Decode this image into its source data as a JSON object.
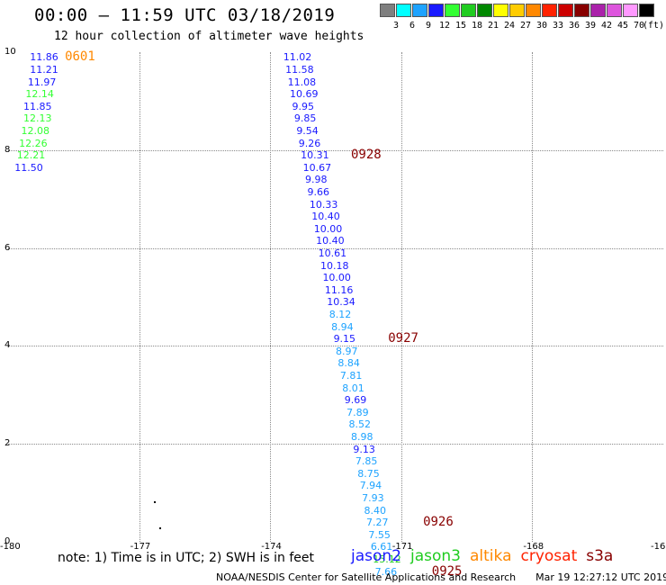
{
  "title": "00:00 – 11:59 UTC 03/18/2019",
  "subtitle": "12 hour collection of altimeter wave heights",
  "legend": {
    "unit": "(ft)",
    "colors": [
      "#7f7f7f",
      "#00ffff",
      "#1ea3ff",
      "#1a1aff",
      "#33ff33",
      "#20cc20",
      "#008800",
      "#ffff00",
      "#ffcc00",
      "#ff8800",
      "#ff2200",
      "#cc0000",
      "#880000",
      "#aa22aa",
      "#dd55dd",
      "#ff99ff",
      "#000000"
    ],
    "labels": [
      "3",
      "6",
      "9",
      "12",
      "15",
      "18",
      "21",
      "24",
      "27",
      "30",
      "33",
      "36",
      "39",
      "42",
      "45",
      "70"
    ]
  },
  "axes": {
    "x_ticks": [
      "-180",
      "-177",
      "-174",
      "-171",
      "-168",
      "-16"
    ],
    "y_ticks": [
      "10",
      "8",
      "6",
      "4",
      "2",
      "0"
    ]
  },
  "observations": [
    {
      "lon": -179.5,
      "lat": 9.9,
      "value": "11.86",
      "color": "#1a1aff"
    },
    {
      "lon": -179.5,
      "lat": 9.65,
      "value": "11.21",
      "color": "#1a1aff"
    },
    {
      "lon": -179.55,
      "lat": 9.4,
      "value": "11.97",
      "color": "#1a1aff"
    },
    {
      "lon": -179.6,
      "lat": 9.15,
      "value": "12.14",
      "color": "#33ff33"
    },
    {
      "lon": -179.65,
      "lat": 8.9,
      "value": "11.85",
      "color": "#1a1aff"
    },
    {
      "lon": -179.65,
      "lat": 8.65,
      "value": "12.13",
      "color": "#33ff33"
    },
    {
      "lon": -179.7,
      "lat": 8.4,
      "value": "12.08",
      "color": "#33ff33"
    },
    {
      "lon": -179.75,
      "lat": 8.15,
      "value": "12.26",
      "color": "#33ff33"
    },
    {
      "lon": -179.8,
      "lat": 7.9,
      "value": "12.21",
      "color": "#33ff33"
    },
    {
      "lon": -179.85,
      "lat": 7.65,
      "value": "11.50",
      "color": "#1a1aff"
    },
    {
      "lon": -173.7,
      "lat": 9.9,
      "value": "11.02",
      "color": "#1a1aff"
    },
    {
      "lon": -173.65,
      "lat": 9.65,
      "value": "11.58",
      "color": "#1a1aff"
    },
    {
      "lon": -173.6,
      "lat": 9.4,
      "value": "11.08",
      "color": "#1a1aff"
    },
    {
      "lon": -173.55,
      "lat": 9.15,
      "value": "10.69",
      "color": "#1a1aff"
    },
    {
      "lon": -173.5,
      "lat": 8.9,
      "value": "9.95",
      "color": "#1a1aff"
    },
    {
      "lon": -173.45,
      "lat": 8.65,
      "value": "9.85",
      "color": "#1a1aff"
    },
    {
      "lon": -173.4,
      "lat": 8.4,
      "value": "9.54",
      "color": "#1a1aff"
    },
    {
      "lon": -173.35,
      "lat": 8.15,
      "value": "9.26",
      "color": "#1a1aff"
    },
    {
      "lon": -173.3,
      "lat": 7.9,
      "value": "10.31",
      "color": "#1a1aff"
    },
    {
      "lon": -173.25,
      "lat": 7.65,
      "value": "10.67",
      "color": "#1a1aff"
    },
    {
      "lon": -173.2,
      "lat": 7.4,
      "value": "9.98",
      "color": "#1a1aff"
    },
    {
      "lon": -173.15,
      "lat": 7.15,
      "value": "9.66",
      "color": "#1a1aff"
    },
    {
      "lon": -173.1,
      "lat": 6.9,
      "value": "10.33",
      "color": "#1a1aff"
    },
    {
      "lon": -173.05,
      "lat": 6.65,
      "value": "10.40",
      "color": "#1a1aff"
    },
    {
      "lon": -173.0,
      "lat": 6.4,
      "value": "10.00",
      "color": "#1a1aff"
    },
    {
      "lon": -172.95,
      "lat": 6.15,
      "value": "10.40",
      "color": "#1a1aff"
    },
    {
      "lon": -172.9,
      "lat": 5.9,
      "value": "10.61",
      "color": "#1a1aff"
    },
    {
      "lon": -172.85,
      "lat": 5.65,
      "value": "10.18",
      "color": "#1a1aff"
    },
    {
      "lon": -172.8,
      "lat": 5.4,
      "value": "10.00",
      "color": "#1a1aff"
    },
    {
      "lon": -172.75,
      "lat": 5.15,
      "value": "11.16",
      "color": "#1a1aff"
    },
    {
      "lon": -172.7,
      "lat": 4.9,
      "value": "10.34",
      "color": "#1a1aff"
    },
    {
      "lon": -172.65,
      "lat": 4.65,
      "value": "8.12",
      "color": "#1ea3ff"
    },
    {
      "lon": -172.6,
      "lat": 4.4,
      "value": "8.94",
      "color": "#1ea3ff"
    },
    {
      "lon": -172.55,
      "lat": 4.15,
      "value": "9.15",
      "color": "#1a1aff"
    },
    {
      "lon": -172.5,
      "lat": 3.9,
      "value": "8.97",
      "color": "#1ea3ff"
    },
    {
      "lon": -172.45,
      "lat": 3.65,
      "value": "8.84",
      "color": "#1ea3ff"
    },
    {
      "lon": -172.4,
      "lat": 3.4,
      "value": "7.81",
      "color": "#1ea3ff"
    },
    {
      "lon": -172.35,
      "lat": 3.15,
      "value": "8.01",
      "color": "#1ea3ff"
    },
    {
      "lon": -172.3,
      "lat": 2.9,
      "value": "9.69",
      "color": "#1a1aff"
    },
    {
      "lon": -172.25,
      "lat": 2.65,
      "value": "7.89",
      "color": "#1ea3ff"
    },
    {
      "lon": -172.2,
      "lat": 2.4,
      "value": "8.52",
      "color": "#1ea3ff"
    },
    {
      "lon": -172.15,
      "lat": 2.15,
      "value": "8.98",
      "color": "#1ea3ff"
    },
    {
      "lon": -172.1,
      "lat": 1.9,
      "value": "9.13",
      "color": "#1a1aff"
    },
    {
      "lon": -172.05,
      "lat": 1.65,
      "value": "7.85",
      "color": "#1ea3ff"
    },
    {
      "lon": -172.0,
      "lat": 1.4,
      "value": "8.75",
      "color": "#1ea3ff"
    },
    {
      "lon": -171.95,
      "lat": 1.15,
      "value": "7.94",
      "color": "#1ea3ff"
    },
    {
      "lon": -171.9,
      "lat": 0.9,
      "value": "7.93",
      "color": "#1ea3ff"
    },
    {
      "lon": -171.85,
      "lat": 0.65,
      "value": "8.40",
      "color": "#1ea3ff"
    },
    {
      "lon": -171.8,
      "lat": 0.4,
      "value": "7.27",
      "color": "#1ea3ff"
    },
    {
      "lon": -171.75,
      "lat": 0.15,
      "value": "7.55",
      "color": "#1ea3ff"
    },
    {
      "lon": -171.7,
      "lat": -0.1,
      "value": "6.61",
      "color": "#1ea3ff"
    },
    {
      "lon": -171.65,
      "lat": -0.35,
      "value": "15.12",
      "color": "#20cc20"
    },
    {
      "lon": -171.6,
      "lat": -0.6,
      "value": "7.66",
      "color": "#1ea3ff"
    }
  ],
  "time_tags": [
    {
      "lon": -178.7,
      "lat": 9.9,
      "text": "0601",
      "color": "#ff8800"
    },
    {
      "lon": -172.15,
      "lat": 7.9,
      "text": "0928",
      "color": "#880000"
    },
    {
      "lon": -171.3,
      "lat": 4.15,
      "text": "0927",
      "color": "#880000"
    },
    {
      "lon": -170.5,
      "lat": 0.4,
      "text": "0926",
      "color": "#880000"
    },
    {
      "lon": -170.3,
      "lat": -0.6,
      "text": "0925",
      "color": "#880000"
    }
  ],
  "note": "note: 1) Time is in UTC; 2) SWH is in feet",
  "satellites": [
    {
      "name": "jason2",
      "color": "#1a1aff"
    },
    {
      "name": "jason3",
      "color": "#20cc20"
    },
    {
      "name": "altika",
      "color": "#ff8800"
    },
    {
      "name": "cryosat",
      "color": "#ff2200"
    },
    {
      "name": "s3a",
      "color": "#880000"
    }
  ],
  "credit": "NOAA/NESDIS Center for Satellite Applications and Research",
  "timestamp": "Mar 19 12:27:12 UTC 2019"
}
